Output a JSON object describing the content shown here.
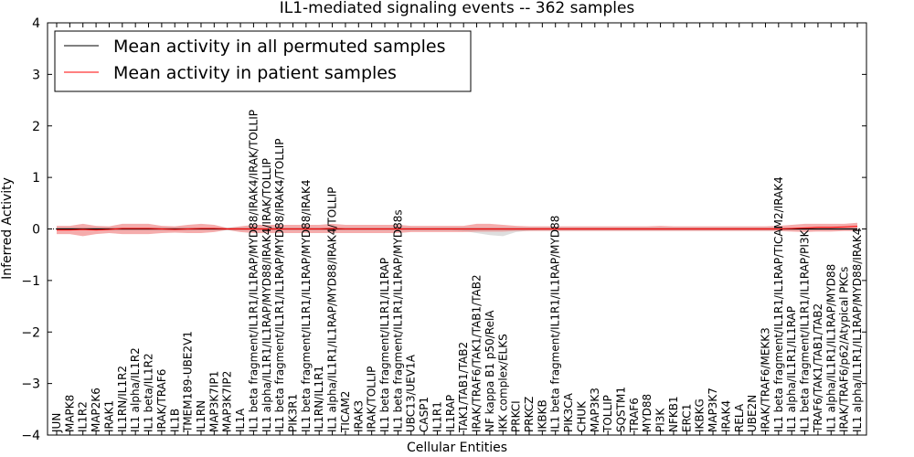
{
  "chart_data": {
    "type": "line",
    "title": "IL1-mediated signaling events -- 362 samples",
    "xlabel": "Cellular Entities",
    "ylabel": "Inferred Activity",
    "ylim": [
      -4,
      4
    ],
    "yticks": [
      -4,
      -3,
      -2,
      -1,
      0,
      1,
      2,
      3,
      4
    ],
    "ytick_labels": [
      "−4",
      "−3",
      "−2",
      "−1",
      "0",
      "1",
      "2",
      "3",
      "4"
    ],
    "legend_position": "top-left",
    "colors": {
      "patient": "#ff0000",
      "patient_band": "#f08080",
      "permuted": "#000000",
      "permuted_band": "#c8c8c8"
    },
    "categories": [
      "JUN",
      "MAPK8",
      "IL1R2",
      "MAP2K6",
      "IRAK1",
      "IL1RN/IL1R2",
      "IL1 alpha/IL1R2",
      "IL1 beta/IL1R2",
      "IRAK/TRAF6",
      "IL1B",
      "TMEM189-UBE2V1",
      "IL1RN",
      "MAP3K7IP1",
      "MAP3K7IP2",
      "IL1A",
      "IL1 beta fragment/IL1R1/IL1RAP/MYD88/IRAK4/IRAK/TOLLIP",
      "IL1 alpha/IL1R1/IL1RAP/MYD88/IRAK4/IRAK/TOLLIP",
      "IL1 beta fragment/IL1R1/IL1RAP/MYD88/IRAK4/TOLLIP",
      "PIK3R1",
      "IL1 beta fragment/IL1R1/IL1RAP/MYD88/IRAK4",
      "IL1RN/IL1R1",
      "IL1 alpha/IL1R1/IL1RAP/MYD88/IRAK4/TOLLIP",
      "TICAM2",
      "IRAK3",
      "IRAK/TOLLIP",
      "IL1 beta fragment/IL1R1/IL1RAP",
      "IL1 beta fragment/IL1R1/IL1RAP/MYD88s",
      "UBC13/UEV1A",
      "CASP1",
      "IL1R1",
      "IL1RAP",
      "TAK1/TAB1/TAB2",
      "IRAK/TRAF6/TAK1/TAB1/TAB2",
      "NF kappa B1 p50/RelA",
      "IKK complex/ELKS",
      "PRKCI",
      "PRKCZ",
      "IKBKB",
      "IL1 beta fragment/IL1R1/IL1RAP/MYD88",
      "PIK3CA",
      "CHUK",
      "MAP3K3",
      "TOLLIP",
      "SQSTM1",
      "TRAF6",
      "MYD88",
      "PI3K",
      "NFKB1",
      "ERC1",
      "IKBKG",
      "MAP3K7",
      "IRAK4",
      "RELA",
      "UBE2N",
      "IRAK/TRAF6/MEKK3",
      "IL1 beta fragment/IL1R1/IL1RAP/TICAM2/IRAK4",
      "IL1 alpha/IL1R1/IL1RAP",
      "IL1 beta fragment/IL1R1/IL1RAP/PI3K",
      "TRAF6/TAK1/TAB1/TAB2",
      "IL1 alpha/IL1R1/IL1RAP/MYD88",
      "IRAK/TRAF6/p62/Atypical PKCs",
      "IL1 alpha/IL1R1/IL1RAP/MYD88/IRAK4"
    ],
    "series": [
      {
        "name": "Mean activity in all permuted samples",
        "values": [
          0,
          0,
          0,
          0,
          0,
          0,
          0,
          0,
          0,
          0,
          0,
          0,
          0,
          0,
          0,
          0,
          0,
          0,
          0,
          0,
          0,
          0,
          0,
          0,
          0,
          0,
          0,
          0,
          0,
          0,
          0,
          0,
          0,
          0,
          0,
          0,
          0,
          0,
          0,
          0,
          0,
          0,
          0,
          0,
          0,
          0,
          0,
          0,
          0,
          0,
          0,
          0,
          0,
          0,
          0,
          0,
          0,
          0,
          0,
          0,
          0,
          0
        ],
        "upper": [
          0.03,
          0.03,
          0.03,
          0.03,
          0.03,
          0.03,
          0.03,
          0.03,
          0.03,
          0.03,
          0.03,
          0.02,
          0.02,
          0.02,
          0.02,
          0.02,
          0.02,
          0.02,
          0.02,
          0.02,
          0.02,
          0.02,
          0.02,
          0.02,
          0.02,
          0.02,
          0.02,
          0.02,
          0.02,
          0.02,
          0.02,
          0.02,
          0.02,
          0.02,
          0.02,
          0.02,
          0.02,
          0.02,
          0.02,
          0.02,
          0.02,
          0.02,
          0.02,
          0.02,
          0.02,
          0.02,
          0.02,
          0.02,
          0.02,
          0.02,
          0.02,
          0.02,
          0.02,
          0.02,
          0.02,
          0.02,
          0.02,
          0.02,
          0.02,
          0.02,
          0.02,
          0.02
        ],
        "lower": [
          -0.03,
          -0.03,
          -0.03,
          -0.03,
          -0.03,
          -0.03,
          -0.03,
          -0.03,
          -0.03,
          -0.03,
          -0.03,
          -0.02,
          -0.02,
          -0.02,
          -0.02,
          -0.02,
          -0.02,
          -0.02,
          -0.02,
          -0.02,
          -0.02,
          -0.02,
          -0.02,
          -0.02,
          -0.02,
          -0.02,
          -0.02,
          -0.02,
          -0.02,
          -0.02,
          -0.02,
          -0.04,
          -0.08,
          -0.12,
          -0.14,
          -0.06,
          -0.03,
          -0.02,
          -0.02,
          -0.02,
          -0.02,
          -0.02,
          -0.02,
          -0.02,
          -0.02,
          -0.02,
          -0.02,
          -0.02,
          -0.02,
          -0.02,
          -0.02,
          -0.02,
          -0.02,
          -0.02,
          -0.02,
          -0.02,
          -0.02,
          -0.02,
          -0.02,
          -0.02,
          -0.02,
          -0.02
        ]
      },
      {
        "name": "Mean activity in patient samples",
        "values": [
          -0.02,
          -0.02,
          -0.01,
          -0.02,
          -0.01,
          0.01,
          0.01,
          0.01,
          0.0,
          -0.01,
          0.0,
          0.01,
          0.01,
          0.0,
          0.0,
          0.0,
          0.0,
          0.0,
          0.0,
          0.0,
          0.0,
          0.01,
          0.0,
          0.0,
          0.0,
          0.0,
          0.0,
          0.0,
          0.0,
          0.0,
          0.0,
          0.0,
          0.0,
          0.0,
          0.0,
          0.0,
          0.0,
          0.0,
          0.0,
          0.0,
          0.0,
          0.0,
          0.0,
          0.0,
          0.0,
          0.0,
          0.0,
          0.0,
          0.0,
          0.0,
          0.0,
          0.0,
          0.0,
          0.0,
          0.0,
          0.0,
          0.01,
          0.02,
          0.03,
          0.03,
          0.04,
          0.05
        ],
        "upper": [
          0.06,
          0.06,
          0.1,
          0.06,
          0.05,
          0.1,
          0.1,
          0.1,
          0.06,
          0.05,
          0.08,
          0.1,
          0.08,
          0.02,
          0.05,
          0.08,
          0.08,
          0.08,
          0.08,
          0.08,
          0.08,
          0.1,
          0.08,
          0.08,
          0.08,
          0.08,
          0.08,
          0.06,
          0.06,
          0.06,
          0.06,
          0.06,
          0.1,
          0.1,
          0.08,
          0.06,
          0.05,
          0.05,
          0.05,
          0.05,
          0.05,
          0.05,
          0.05,
          0.05,
          0.05,
          0.05,
          0.06,
          0.05,
          0.05,
          0.05,
          0.05,
          0.05,
          0.05,
          0.05,
          0.05,
          0.06,
          0.08,
          0.1,
          0.1,
          0.1,
          0.1,
          0.12
        ],
        "lower": [
          -0.1,
          -0.1,
          -0.14,
          -0.1,
          -0.08,
          -0.1,
          -0.1,
          -0.1,
          -0.08,
          -0.07,
          -0.08,
          -0.08,
          -0.06,
          -0.02,
          -0.06,
          -0.08,
          -0.08,
          -0.08,
          -0.08,
          -0.08,
          -0.08,
          -0.08,
          -0.08,
          -0.08,
          -0.08,
          -0.08,
          -0.08,
          -0.06,
          -0.06,
          -0.06,
          -0.06,
          -0.06,
          -0.05,
          -0.05,
          -0.05,
          -0.04,
          -0.04,
          -0.04,
          -0.04,
          -0.04,
          -0.04,
          -0.04,
          -0.04,
          -0.04,
          -0.04,
          -0.04,
          -0.04,
          -0.04,
          -0.04,
          -0.04,
          -0.04,
          -0.04,
          -0.04,
          -0.04,
          -0.04,
          -0.04,
          -0.05,
          -0.06,
          -0.05,
          -0.05,
          -0.04,
          -0.04
        ]
      }
    ]
  }
}
